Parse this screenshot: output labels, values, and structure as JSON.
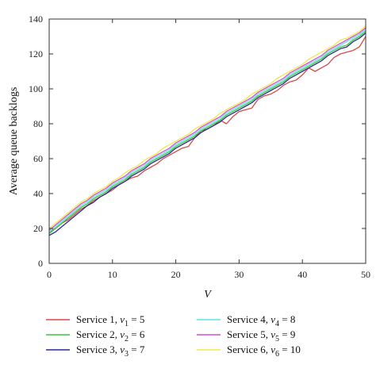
{
  "chart_data": {
    "type": "line",
    "xlabel": "V",
    "ylabel": "Average queue backlogs",
    "xlim": [
      0,
      50
    ],
    "ylim": [
      0,
      140
    ],
    "xticks": [
      0,
      10,
      20,
      30,
      40,
      50
    ],
    "yticks": [
      0,
      20,
      40,
      60,
      80,
      100,
      120,
      140
    ],
    "grid": false,
    "legend_position": "bottom",
    "x": [
      0,
      1,
      2,
      3,
      4,
      5,
      6,
      7,
      8,
      9,
      10,
      11,
      12,
      13,
      14,
      15,
      16,
      17,
      18,
      19,
      20,
      21,
      22,
      23,
      24,
      25,
      26,
      27,
      28,
      29,
      30,
      31,
      32,
      33,
      34,
      35,
      36,
      37,
      38,
      39,
      40,
      41,
      42,
      43,
      44,
      45,
      46,
      47,
      48,
      49,
      50
    ],
    "series": [
      {
        "name": "Service 1, ν1 = 5",
        "name_parts": {
          "prefix": "Service 1, ",
          "symbol": "ν",
          "sub": "1",
          "suffix": " = 5"
        },
        "color": "#d44a4a",
        "values": [
          18,
          20,
          23,
          25,
          28,
          31,
          33,
          36,
          38,
          40,
          42,
          45,
          47,
          49,
          50,
          53,
          55,
          57,
          60,
          62,
          64,
          66,
          67,
          72,
          76,
          77,
          79,
          82,
          80,
          84,
          87,
          88,
          89,
          94,
          96,
          97,
          99,
          102,
          104,
          105,
          108,
          112,
          110,
          112,
          114,
          118,
          120,
          121,
          122,
          124,
          130
        ]
      },
      {
        "name": "Service 2, ν2 = 6",
        "name_parts": {
          "prefix": "Service 2, ",
          "symbol": "ν",
          "sub": "2",
          "suffix": " = 6"
        },
        "color": "#3ec43e",
        "values": [
          17,
          20,
          23,
          26,
          29,
          32,
          34,
          37,
          39,
          41,
          44,
          46,
          48,
          51,
          53,
          55,
          58,
          60,
          62,
          64,
          67,
          69,
          71,
          73,
          76,
          78,
          80,
          82,
          85,
          87,
          89,
          91,
          93,
          96,
          98,
          100,
          102,
          104,
          107,
          109,
          111,
          113,
          115,
          117,
          120,
          122,
          124,
          125,
          128,
          130,
          133
        ]
      },
      {
        "name": "Service 3, ν3 = 7",
        "name_parts": {
          "prefix": "Service 3, ",
          "symbol": "ν",
          "sub": "3",
          "suffix": " = 7"
        },
        "color": "#2a2a9a",
        "values": [
          16,
          18,
          21,
          24,
          27,
          30,
          33,
          35,
          38,
          40,
          43,
          45,
          47,
          50,
          52,
          54,
          57,
          59,
          61,
          63,
          66,
          68,
          70,
          72,
          75,
          77,
          79,
          81,
          84,
          86,
          88,
          90,
          92,
          95,
          97,
          99,
          101,
          103,
          106,
          108,
          110,
          112,
          114,
          116,
          119,
          121,
          123,
          124,
          127,
          129,
          132
        ]
      },
      {
        "name": "Service 4, ν4 = 8",
        "name_parts": {
          "prefix": "Service 4, ",
          "symbol": "ν",
          "sub": "4",
          "suffix": " = 8"
        },
        "color": "#5fe3e3",
        "values": [
          18,
          21,
          24,
          27,
          30,
          33,
          35,
          38,
          40,
          42,
          45,
          47,
          49,
          52,
          54,
          56,
          59,
          61,
          63,
          65,
          68,
          70,
          72,
          74,
          77,
          79,
          81,
          83,
          86,
          88,
          90,
          92,
          94,
          97,
          99,
          101,
          103,
          105,
          108,
          110,
          112,
          114,
          116,
          118,
          121,
          123,
          125,
          127,
          129,
          131,
          134
        ]
      },
      {
        "name": "Service 5, ν5 = 9",
        "name_parts": {
          "prefix": "Service 5, ",
          "symbol": "ν",
          "sub": "5",
          "suffix": " = 9"
        },
        "color": "#d24fd2",
        "values": [
          19,
          22,
          25,
          28,
          31,
          34,
          36,
          39,
          41,
          43,
          46,
          48,
          50,
          53,
          55,
          57,
          60,
          62,
          64,
          66,
          69,
          71,
          73,
          75,
          78,
          80,
          82,
          84,
          87,
          89,
          91,
          93,
          95,
          98,
          100,
          102,
          104,
          106,
          109,
          111,
          113,
          115,
          117,
          119,
          122,
          124,
          126,
          128,
          130,
          132,
          135
        ]
      },
      {
        "name": "Service 6, ν6 = 10",
        "name_parts": {
          "prefix": "Service 6, ",
          "symbol": "ν",
          "sub": "6",
          "suffix": " = 10"
        },
        "color": "#f2e84a",
        "values": [
          20,
          23,
          26,
          29,
          32,
          35,
          37,
          40,
          42,
          44,
          47,
          49,
          52,
          54,
          56,
          59,
          61,
          63,
          66,
          68,
          70,
          72,
          74,
          77,
          79,
          81,
          83,
          86,
          88,
          90,
          92,
          94,
          97,
          99,
          101,
          103,
          106,
          108,
          110,
          112,
          114,
          117,
          119,
          121,
          123,
          125,
          128,
          129,
          131,
          133,
          136
        ]
      }
    ]
  }
}
